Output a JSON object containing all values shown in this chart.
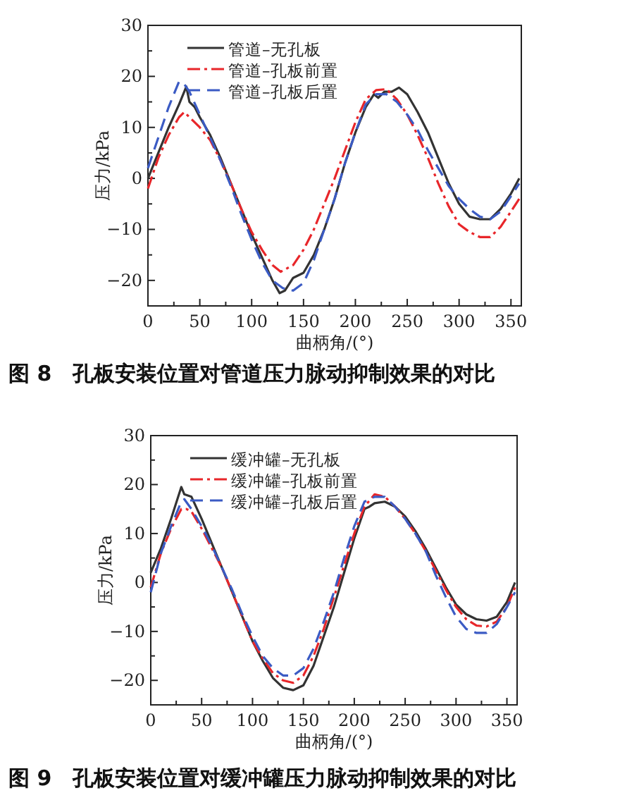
{
  "chart_data": [
    {
      "type": "line",
      "title": "图 8　孔板安装位置对管道压力脉动抑制效果的对比",
      "xlabel": "曲柄角/(°)",
      "ylabel": "压力/kPa",
      "xlim": [
        0,
        360
      ],
      "xticks": [
        0,
        50,
        100,
        150,
        200,
        250,
        300,
        350
      ],
      "ylim": [
        -25,
        30
      ],
      "yticks": [
        -20,
        -10,
        0,
        10,
        20,
        30
      ],
      "legend": "top left",
      "x": [
        0,
        10,
        20,
        30,
        37,
        40,
        45,
        50,
        60,
        70,
        80,
        90,
        100,
        110,
        120,
        127,
        132,
        140,
        150,
        160,
        170,
        180,
        190,
        200,
        210,
        218,
        222,
        228,
        235,
        242,
        250,
        260,
        270,
        280,
        290,
        300,
        310,
        320,
        330,
        340,
        350,
        358
      ],
      "series": [
        {
          "name": "管道–无孔板",
          "color": "#333333",
          "line_style": "solid",
          "values": [
            0,
            5,
            10,
            14.5,
            18,
            15,
            14,
            12,
            8.5,
            4,
            -1,
            -6,
            -11,
            -15.5,
            -20,
            -22.5,
            -22,
            -19.5,
            -18.5,
            -15,
            -10,
            -4,
            3,
            9,
            14,
            16.5,
            15.8,
            17,
            17,
            17.8,
            16.5,
            13,
            9,
            4,
            -1,
            -5,
            -7.5,
            -8,
            -8,
            -6,
            -3,
            0
          ]
        },
        {
          "name": "管道–孔板前置",
          "color": "#e8262a",
          "line_style": "dashdot",
          "x": [
            0,
            10,
            20,
            30,
            35,
            40,
            50,
            60,
            70,
            80,
            90,
            100,
            110,
            120,
            128,
            140,
            150,
            160,
            170,
            180,
            190,
            200,
            210,
            220,
            230,
            240,
            250,
            260,
            270,
            280,
            290,
            300,
            310,
            320,
            330,
            340,
            350,
            358
          ],
          "values": [
            -2,
            4,
            8.5,
            12,
            13,
            12,
            10,
            7.5,
            3.5,
            -1,
            -6,
            -10.5,
            -14,
            -17,
            -18.3,
            -17,
            -14,
            -10,
            -5,
            0,
            5.5,
            11,
            15.5,
            17.3,
            17.5,
            15.5,
            12.5,
            8.5,
            4,
            -1,
            -5.5,
            -9,
            -10.5,
            -11.5,
            -11.5,
            -9.5,
            -6.5,
            -4
          ]
        },
        {
          "name": "管道–孔板后置",
          "color": "#3b5bc4",
          "line_style": "dashed",
          "x": [
            0,
            10,
            20,
            30,
            35,
            40,
            50,
            60,
            70,
            80,
            90,
            100,
            110,
            120,
            130,
            140,
            150,
            160,
            170,
            180,
            190,
            200,
            210,
            220,
            230,
            240,
            250,
            260,
            270,
            280,
            290,
            300,
            310,
            320,
            330,
            340,
            350,
            358
          ],
          "values": [
            2,
            8,
            14,
            19,
            18.5,
            17,
            12.5,
            8,
            3.5,
            -1.5,
            -7,
            -12,
            -16.5,
            -20,
            -21.5,
            -22,
            -20.5,
            -16,
            -10,
            -4,
            3,
            9,
            14.5,
            16.5,
            16.5,
            15,
            12.5,
            9.5,
            5.5,
            2,
            -1.5,
            -4,
            -6,
            -7.5,
            -8,
            -6.5,
            -3.5,
            -1
          ]
        }
      ]
    },
    {
      "type": "line",
      "title": "图 9　孔板安装位置对缓冲罐压力脉动抑制效果的对比",
      "xlabel": "曲柄角/(°)",
      "ylabel": "压力/kPa",
      "xlim": [
        0,
        360
      ],
      "xticks": [
        0,
        50,
        100,
        150,
        200,
        250,
        300,
        350
      ],
      "ylim": [
        -25,
        30
      ],
      "yticks": [
        -20,
        -10,
        0,
        10,
        20,
        30
      ],
      "legend": "top left",
      "x": [
        0,
        10,
        20,
        30,
        33,
        40,
        50,
        60,
        70,
        80,
        90,
        100,
        110,
        120,
        130,
        140,
        150,
        160,
        170,
        180,
        190,
        200,
        210,
        215,
        220,
        230,
        240,
        250,
        260,
        270,
        280,
        290,
        300,
        310,
        320,
        330,
        340,
        350,
        358
      ],
      "series": [
        {
          "name": "缓冲罐–无孔板",
          "color": "#333333",
          "line_style": "solid",
          "values": [
            2,
            7,
            13,
            19.5,
            18,
            17.5,
            13,
            8,
            3,
            -2,
            -7,
            -12,
            -16,
            -19.5,
            -21.5,
            -22,
            -21,
            -17,
            -11,
            -5,
            2,
            9,
            15,
            15.5,
            16.2,
            16.5,
            15.5,
            13.5,
            10.5,
            7,
            3,
            -1,
            -4.5,
            -6.5,
            -7.5,
            -7.8,
            -7,
            -4,
            0
          ]
        },
        {
          "name": "缓冲罐–孔板前置",
          "color": "#e8262a",
          "line_style": "dashdot",
          "x": [
            0,
            10,
            20,
            30,
            35,
            40,
            50,
            60,
            70,
            80,
            90,
            100,
            110,
            120,
            130,
            140,
            150,
            160,
            170,
            180,
            190,
            200,
            210,
            220,
            230,
            240,
            250,
            260,
            270,
            280,
            290,
            300,
            310,
            320,
            330,
            340,
            350,
            358
          ],
          "values": [
            -1,
            6,
            11,
            15,
            15,
            14.5,
            11,
            7,
            3,
            -2,
            -7,
            -12,
            -15.5,
            -18.5,
            -20,
            -20.5,
            -19,
            -15,
            -9.5,
            -3,
            3.5,
            10,
            15.5,
            18,
            17.5,
            15.5,
            13,
            10,
            6.5,
            2.5,
            -1.5,
            -5,
            -7.5,
            -8.8,
            -9,
            -8,
            -5,
            -1
          ]
        },
        {
          "name": "缓冲罐–孔板后置",
          "color": "#3b5bc4",
          "line_style": "dashed",
          "x": [
            0,
            10,
            20,
            30,
            33,
            40,
            50,
            60,
            70,
            80,
            90,
            100,
            110,
            120,
            130,
            140,
            150,
            160,
            170,
            180,
            190,
            200,
            210,
            220,
            230,
            240,
            250,
            260,
            270,
            280,
            290,
            300,
            310,
            320,
            330,
            340,
            350,
            358
          ],
          "values": [
            -2,
            6,
            11.5,
            16.5,
            17,
            15,
            11.5,
            7.5,
            3,
            -1.5,
            -6.5,
            -11,
            -15,
            -17.5,
            -19,
            -19,
            -17.5,
            -13.5,
            -8,
            -2,
            5,
            11.5,
            16.5,
            17.5,
            17.5,
            15.5,
            13,
            10,
            6.5,
            1.5,
            -3,
            -7,
            -9.5,
            -10.3,
            -10.3,
            -8.5,
            -5,
            -2
          ]
        }
      ]
    }
  ]
}
